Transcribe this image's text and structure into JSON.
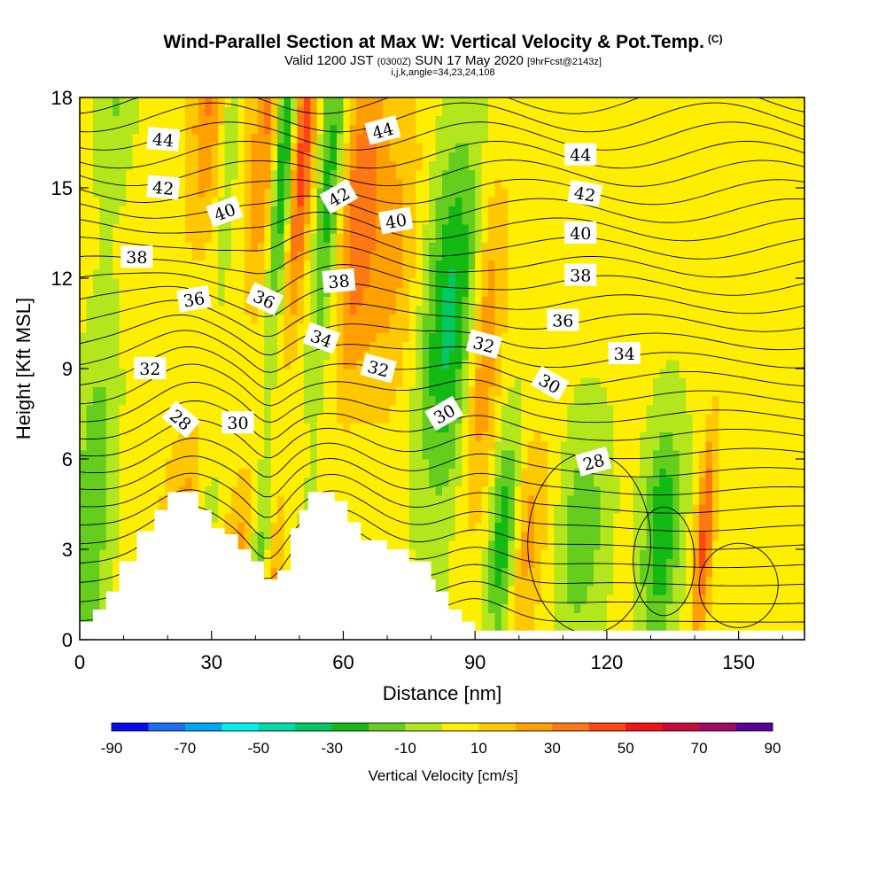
{
  "titles": {
    "main": "Wind-Parallel Section at Max W: Vertical Velocity & Pot.Temp.",
    "copyright": "(C)",
    "valid_prefix": "Valid 1200 JST",
    "valid_zulu": "(0300Z)",
    "valid_date": "SUN 17 May 2020",
    "fcst": "[9hrFcst@2143z]",
    "indices": "i,j,k,angle=34,23,24,108"
  },
  "chart_data": {
    "type": "heatmap",
    "title": "Wind-Parallel Section at Max W: Vertical Velocity & Pot.Temp.",
    "xlabel": "Distance [nm]",
    "ylabel": "Height [Kft MSL]",
    "xlim": [
      0,
      165
    ],
    "ylim": [
      0,
      18
    ],
    "x_ticks": [
      0,
      30,
      60,
      90,
      120,
      150
    ],
    "y_ticks": [
      0,
      3,
      6,
      9,
      12,
      15,
      18
    ],
    "colorbar": {
      "label": "Vertical Velocity [cm/s]",
      "tick_labels": [
        "-90",
        "-70",
        "-50",
        "-30",
        "-10",
        "10",
        "30",
        "50",
        "70",
        "90"
      ],
      "levels": [
        -90,
        -80,
        -70,
        -60,
        -50,
        -40,
        -30,
        -20,
        -10,
        0,
        10,
        20,
        30,
        40,
        50,
        60,
        70,
        80,
        90
      ],
      "colors": [
        "#0a0af0",
        "#1e6ef5",
        "#00a5f5",
        "#00f0f0",
        "#00dcaa",
        "#00c864",
        "#14b914",
        "#64cd1e",
        "#b4e61e",
        "#ffee00",
        "#ffc800",
        "#ffa000",
        "#ff7814",
        "#ff4614",
        "#f01414",
        "#c80a3c",
        "#a00a64",
        "#5a0096"
      ]
    },
    "updraft_bands": [
      {
        "x": 25,
        "w": 6,
        "value": 35
      },
      {
        "x": 38,
        "w": 4,
        "value": 40
      },
      {
        "x": 45,
        "w": 3,
        "value": 50
      },
      {
        "x": 59,
        "w": 5,
        "value": 35
      },
      {
        "x": 68,
        "w": 6,
        "value": 20
      },
      {
        "x": 90,
        "w": 4,
        "value": 28
      },
      {
        "x": 103,
        "w": 4,
        "value": 22
      },
      {
        "x": 143,
        "w": 2,
        "value": 42
      }
    ],
    "downdraft_bands": [
      {
        "x": 3,
        "w": 4,
        "value": -22
      },
      {
        "x": 29,
        "w": 3,
        "value": -30
      },
      {
        "x": 42,
        "w": 3,
        "value": -60
      },
      {
        "x": 53,
        "w": 3,
        "value": -30
      },
      {
        "x": 82,
        "w": 6,
        "value": -35
      },
      {
        "x": 97,
        "w": 3,
        "value": -30
      },
      {
        "x": 115,
        "w": 5,
        "value": -20
      },
      {
        "x": 133,
        "w": 4,
        "value": -32
      }
    ],
    "terrain_profile": [
      {
        "x": 0,
        "y": 0.6
      },
      {
        "x": 3,
        "y": 0.6
      },
      {
        "x": 3,
        "y": 1.0
      },
      {
        "x": 6,
        "y": 1.0
      },
      {
        "x": 6,
        "y": 1.6
      },
      {
        "x": 9,
        "y": 1.6
      },
      {
        "x": 9,
        "y": 2.6
      },
      {
        "x": 13,
        "y": 2.6
      },
      {
        "x": 13,
        "y": 3.6
      },
      {
        "x": 17,
        "y": 3.6
      },
      {
        "x": 17,
        "y": 4.3
      },
      {
        "x": 20,
        "y": 4.3
      },
      {
        "x": 20,
        "y": 4.9
      },
      {
        "x": 27,
        "y": 4.9
      },
      {
        "x": 27,
        "y": 4.3
      },
      {
        "x": 30,
        "y": 4.3
      },
      {
        "x": 30,
        "y": 3.7
      },
      {
        "x": 33,
        "y": 3.7
      },
      {
        "x": 33,
        "y": 3.5
      },
      {
        "x": 36,
        "y": 3.5
      },
      {
        "x": 36,
        "y": 3.0
      },
      {
        "x": 39,
        "y": 3.0
      },
      {
        "x": 39,
        "y": 2.6
      },
      {
        "x": 42,
        "y": 2.6
      },
      {
        "x": 42,
        "y": 2.0
      },
      {
        "x": 45,
        "y": 2.0
      },
      {
        "x": 45,
        "y": 2.3
      },
      {
        "x": 48,
        "y": 2.3
      },
      {
        "x": 48,
        "y": 3.7
      },
      {
        "x": 50,
        "y": 3.7
      },
      {
        "x": 50,
        "y": 4.3
      },
      {
        "x": 52,
        "y": 4.3
      },
      {
        "x": 52,
        "y": 4.9
      },
      {
        "x": 58,
        "y": 4.9
      },
      {
        "x": 58,
        "y": 4.6
      },
      {
        "x": 61,
        "y": 4.6
      },
      {
        "x": 61,
        "y": 3.9
      },
      {
        "x": 64,
        "y": 3.9
      },
      {
        "x": 64,
        "y": 3.3
      },
      {
        "x": 70,
        "y": 3.3
      },
      {
        "x": 70,
        "y": 3.0
      },
      {
        "x": 75,
        "y": 3.0
      },
      {
        "x": 75,
        "y": 2.6
      },
      {
        "x": 80,
        "y": 2.6
      },
      {
        "x": 80,
        "y": 2.0
      },
      {
        "x": 81,
        "y": 2.0
      },
      {
        "x": 81,
        "y": 1.6
      },
      {
        "x": 84,
        "y": 1.6
      },
      {
        "x": 84,
        "y": 1.0
      },
      {
        "x": 87,
        "y": 1.0
      },
      {
        "x": 87,
        "y": 0.6
      },
      {
        "x": 90,
        "y": 0.6
      },
      {
        "x": 90,
        "y": 0.3
      },
      {
        "x": 165,
        "y": 0.3
      }
    ],
    "contour_labels": [
      {
        "text": "44",
        "x": 19,
        "y": 16.6,
        "angle": 5
      },
      {
        "text": "42",
        "x": 19,
        "y": 15.0,
        "angle": 5
      },
      {
        "text": "40",
        "x": 33,
        "y": 14.2,
        "angle": -20
      },
      {
        "text": "38",
        "x": 13,
        "y": 12.7,
        "angle": 0
      },
      {
        "text": "36",
        "x": 26,
        "y": 11.3,
        "angle": -10
      },
      {
        "text": "36",
        "x": 42,
        "y": 11.3,
        "angle": 25
      },
      {
        "text": "32",
        "x": 16,
        "y": 9.0,
        "angle": 0
      },
      {
        "text": "28",
        "x": 23,
        "y": 7.3,
        "angle": 40
      },
      {
        "text": "30",
        "x": 36,
        "y": 7.2,
        "angle": 0
      },
      {
        "text": "44",
        "x": 69,
        "y": 16.9,
        "angle": -15
      },
      {
        "text": "42",
        "x": 59,
        "y": 14.7,
        "angle": -30
      },
      {
        "text": "40",
        "x": 72,
        "y": 13.9,
        "angle": -10
      },
      {
        "text": "38",
        "x": 59,
        "y": 11.9,
        "angle": -5
      },
      {
        "text": "34",
        "x": 55,
        "y": 10.0,
        "angle": 20
      },
      {
        "text": "32",
        "x": 68,
        "y": 9.0,
        "angle": 15
      },
      {
        "text": "30",
        "x": 83,
        "y": 7.5,
        "angle": -30
      },
      {
        "text": "32",
        "x": 92,
        "y": 9.8,
        "angle": 15
      },
      {
        "text": "30",
        "x": 107,
        "y": 8.5,
        "angle": 30
      },
      {
        "text": "28",
        "x": 117,
        "y": 5.9,
        "angle": -15
      },
      {
        "text": "44",
        "x": 114,
        "y": 16.1,
        "angle": 0
      },
      {
        "text": "42",
        "x": 115,
        "y": 14.8,
        "angle": 10
      },
      {
        "text": "40",
        "x": 114,
        "y": 13.5,
        "angle": 0
      },
      {
        "text": "38",
        "x": 114,
        "y": 12.1,
        "angle": 0
      },
      {
        "text": "36",
        "x": 110,
        "y": 10.6,
        "angle": 0
      },
      {
        "text": "34",
        "x": 124,
        "y": 9.5,
        "angle": 0
      }
    ]
  }
}
